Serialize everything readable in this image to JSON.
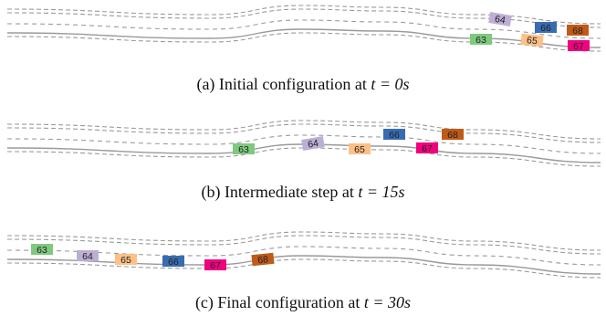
{
  "colors": {
    "road_edge": "#9a9a9a",
    "lane_line": "#9a9a9a",
    "v63": "#7fc97f",
    "v64": "#beaed4",
    "v65": "#fdc086",
    "v66": "#386cb0",
    "v67": "#f0027f",
    "v68": "#bf5b17"
  },
  "panels": [
    {
      "id": "a",
      "caption_prefix": "(a) Initial configuration at",
      "caption_math": "t = 0s",
      "vehicles": [
        {
          "id": "63",
          "color_key": "v63"
        },
        {
          "id": "64",
          "color_key": "v64"
        },
        {
          "id": "65",
          "color_key": "v65"
        },
        {
          "id": "66",
          "color_key": "v66"
        },
        {
          "id": "67",
          "color_key": "v67"
        },
        {
          "id": "68",
          "color_key": "v68"
        }
      ]
    },
    {
      "id": "b",
      "caption_prefix": "(b) Intermediate step at",
      "caption_math": "t = 15s",
      "vehicles": [
        {
          "id": "63",
          "color_key": "v63"
        },
        {
          "id": "64",
          "color_key": "v64"
        },
        {
          "id": "65",
          "color_key": "v65"
        },
        {
          "id": "66",
          "color_key": "v66"
        },
        {
          "id": "67",
          "color_key": "v67"
        },
        {
          "id": "68",
          "color_key": "v68"
        }
      ]
    },
    {
      "id": "c",
      "caption_prefix": "(c) Final configuration at",
      "caption_math": "t = 30s",
      "vehicles": [
        {
          "id": "63",
          "color_key": "v63"
        },
        {
          "id": "64",
          "color_key": "v64"
        },
        {
          "id": "65",
          "color_key": "v65"
        },
        {
          "id": "66",
          "color_key": "v66"
        },
        {
          "id": "67",
          "color_key": "v67"
        },
        {
          "id": "68",
          "color_key": "v68"
        }
      ]
    }
  ]
}
